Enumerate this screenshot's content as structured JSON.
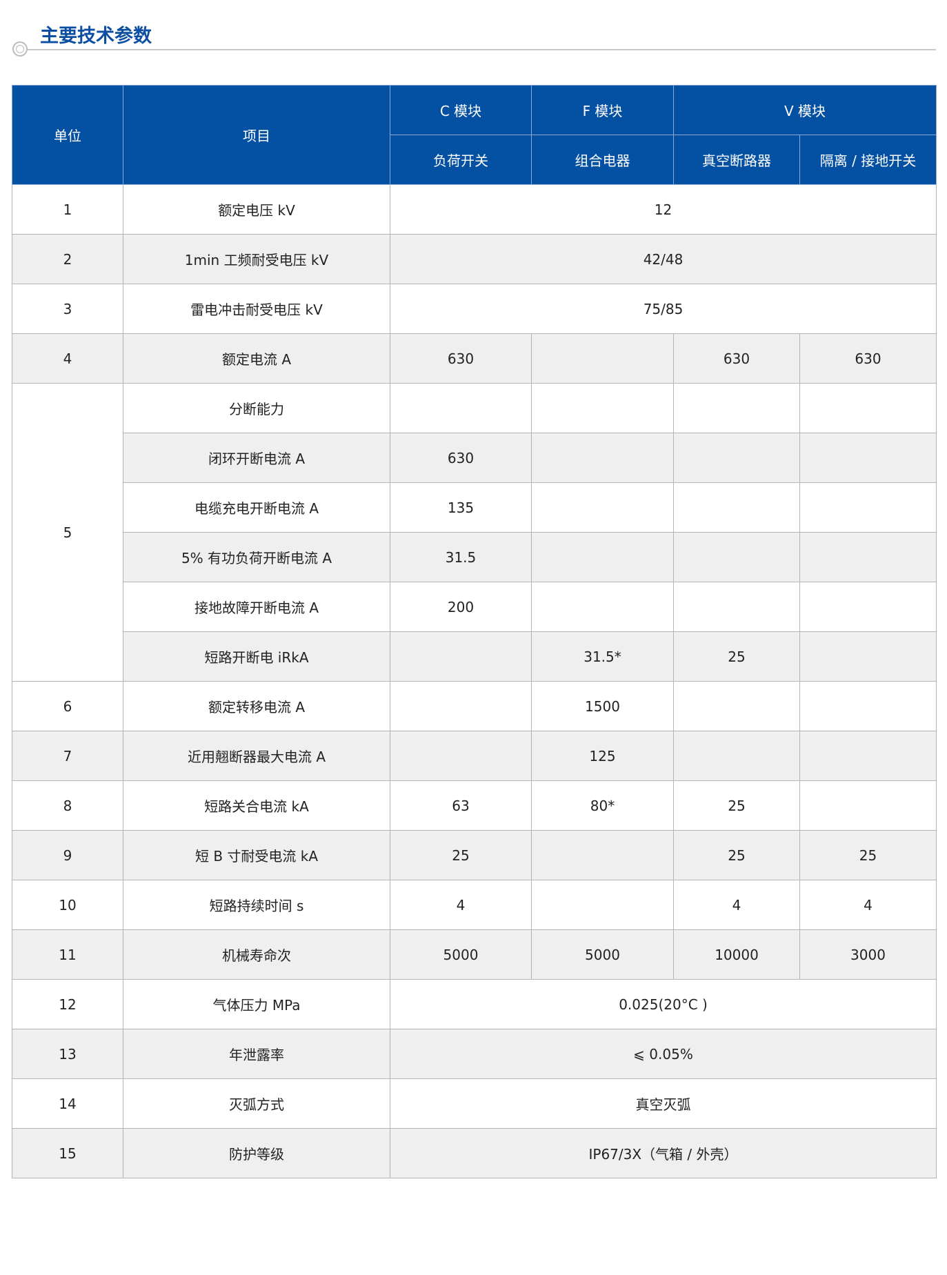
{
  "title": "主要技术参数",
  "header": {
    "unit": "单位",
    "item": "项目",
    "c_module": "C 模块",
    "f_module": "F 模块",
    "v_module": "V 模块",
    "c_sub": "负荷开关",
    "f_sub": "组合电器",
    "v_sub1": "真空断路器",
    "v_sub2": "隔离 / 接地开关"
  },
  "rows": [
    {
      "no": "1",
      "item": "额定电压 kV",
      "all": "12"
    },
    {
      "no": "2",
      "item": "1min 工频耐受电压 kV",
      "all": "42/48"
    },
    {
      "no": "3",
      "item": "雷电冲击耐受电压 kV",
      "all": "75/85"
    },
    {
      "no": "4",
      "item": "额定电流 A",
      "c": "630",
      "f": "",
      "v1": "630",
      "v2": "630"
    },
    {
      "no": "5",
      "item": "分断能力",
      "c": "",
      "f": "",
      "v1": "",
      "v2": ""
    },
    {
      "item": "闭环开断电流 A",
      "c": "630",
      "f": "",
      "v1": "",
      "v2": ""
    },
    {
      "item": "电缆充电开断电流 A",
      "c": "135",
      "f": "",
      "v1": "",
      "v2": ""
    },
    {
      "item": "5% 有功负荷开断电流 A",
      "c": "31.5",
      "f": "",
      "v1": "",
      "v2": ""
    },
    {
      "item": "接地故障开断电流 A",
      "c": "200",
      "f": "",
      "v1": "",
      "v2": ""
    },
    {
      "item": "短路开断电 iRkA",
      "c": "",
      "f": "31.5*",
      "v1": "25",
      "v2": ""
    },
    {
      "no": "6",
      "item": "额定转移电流 A",
      "c": "",
      "f": "1500",
      "v1": "",
      "v2": ""
    },
    {
      "no": "7",
      "item": "近用翹断器最大电流 A",
      "c": "",
      "f": "125",
      "v1": "",
      "v2": ""
    },
    {
      "no": "8",
      "item": "短路关合电流 kA",
      "c": "63",
      "f": "80*",
      "v1": "25",
      "v2": ""
    },
    {
      "no": "9",
      "item": "短 B 寸耐受电流 kA",
      "c": "25",
      "f": "",
      "v1": "25",
      "v2": "25"
    },
    {
      "no": "10",
      "item": "短路持续时间 s",
      "c": "4",
      "f": "",
      "v1": "4",
      "v2": "4"
    },
    {
      "no": "11",
      "item": "机械寿命次",
      "c": "5000",
      "f": "5000",
      "v1": "10000",
      "v2": "3000"
    },
    {
      "no": "12",
      "item": "气体压力 MPa",
      "all": "0.025(20°C )"
    },
    {
      "no": "13",
      "item": "年泄露率",
      "all": "⩽ 0.05%"
    },
    {
      "no": "14",
      "item": "灭弧方式",
      "all": "真空灭弧"
    },
    {
      "no": "15",
      "item": "防护等级",
      "all": "IP67/3X（气箱 / 外壳）"
    }
  ]
}
